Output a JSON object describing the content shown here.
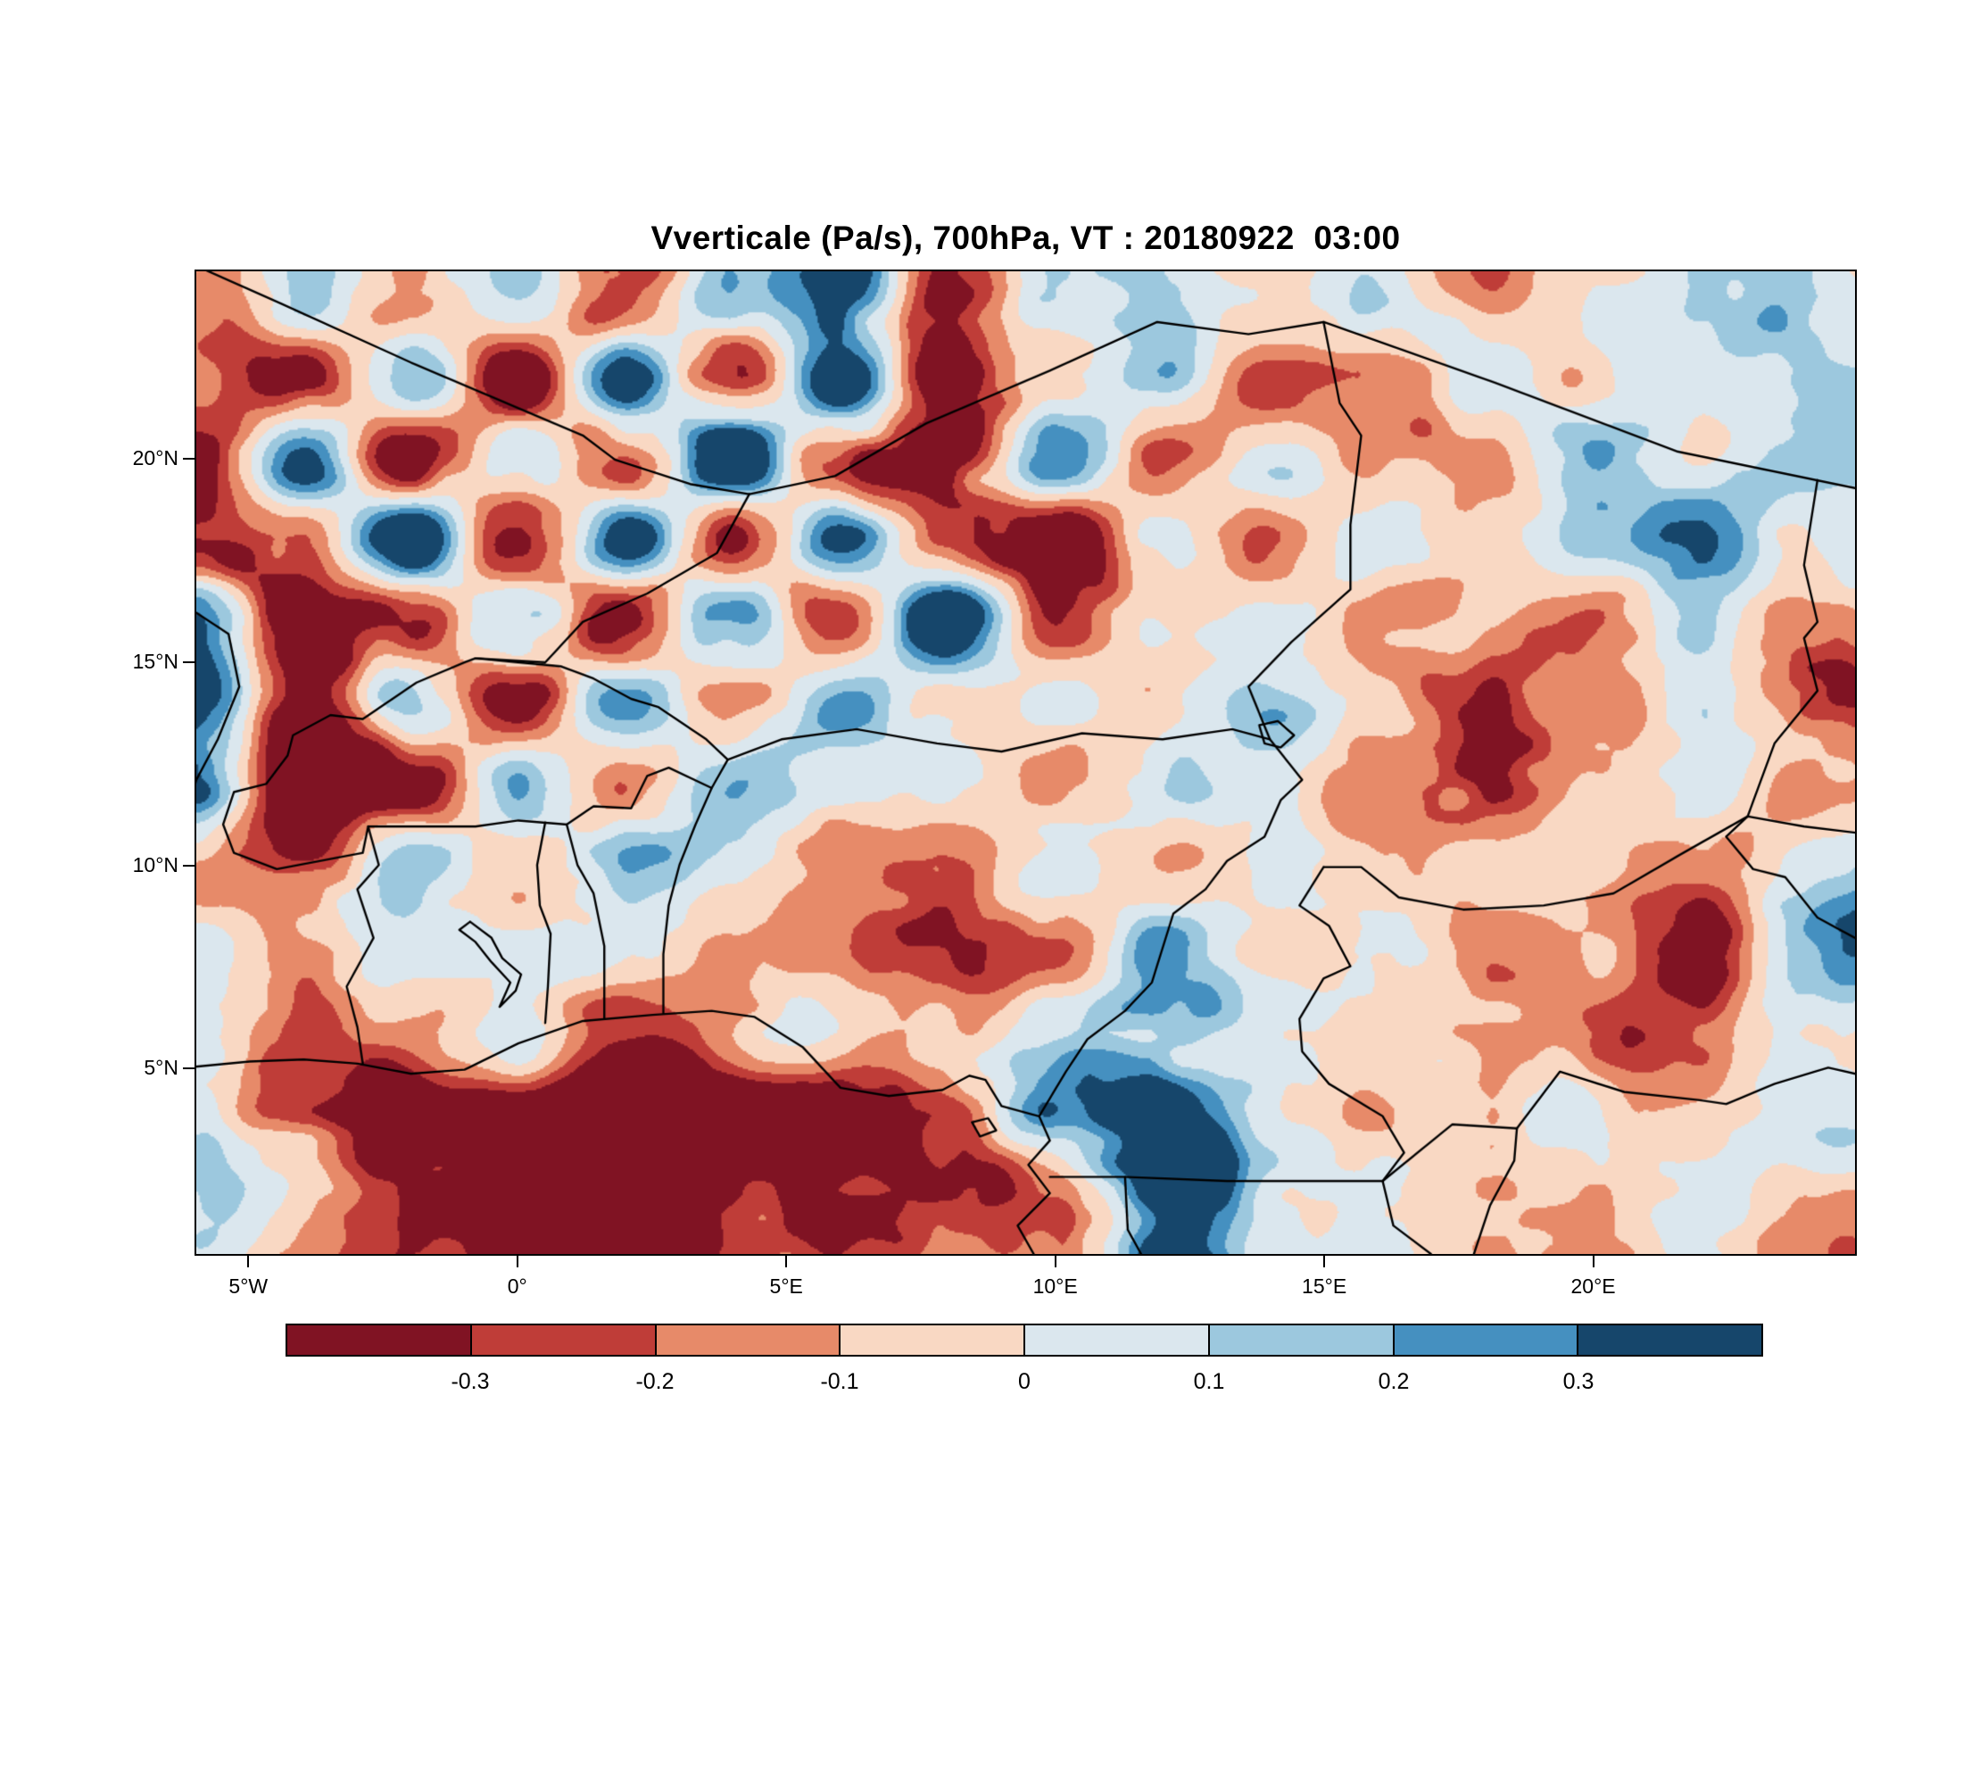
{
  "page": {
    "background": "#ffffff"
  },
  "chart_data": {
    "type": "heatmap",
    "title": "Vverticale (Pa/s), 700hPa, VT : 20180922  03:00",
    "x_ticks": [
      {
        "value": -5,
        "label": "5°W"
      },
      {
        "value": 0,
        "label": "0°"
      },
      {
        "value": 5,
        "label": "5°E"
      },
      {
        "value": 10,
        "label": "10°E"
      },
      {
        "value": 15,
        "label": "15°E"
      },
      {
        "value": 20,
        "label": "20°E"
      }
    ],
    "y_ticks": [
      {
        "value": 5,
        "label": "5°N"
      },
      {
        "value": 10,
        "label": "10°N"
      },
      {
        "value": 15,
        "label": "15°N"
      },
      {
        "value": 20,
        "label": "20°N"
      }
    ],
    "lon_range": [
      -6.0,
      24.9
    ],
    "lat_range": [
      0.4,
      24.65
    ],
    "levels": [
      -0.3,
      -0.2,
      -0.1,
      0,
      0.1,
      0.2,
      0.3
    ],
    "colorbar_labels": [
      "-0.3",
      "-0.2",
      "-0.1",
      "0",
      "0.1",
      "0.2",
      "0.3"
    ],
    "colors": [
      "#801323",
      "#bf3d38",
      "#e78a69",
      "#f9d8c3",
      "#dbe7ee",
      "#9cc8de",
      "#4590c0",
      "#16466b"
    ],
    "legend_position": "bottom",
    "grid": {
      "lon0": -6,
      "dlon": 2,
      "lat0": 24,
      "dlat": 2,
      "ncols": 16,
      "nrows": 12,
      "values": [
        [
          -0.15,
          0.1,
          -0.22,
          0.15,
          -0.35,
          0.22,
          0.38,
          -0.32,
          0.15,
          0.05,
          -0.12,
          0.1,
          -0.16,
          -0.05,
          0.1,
          0.1
        ],
        [
          -0.1,
          -0.3,
          0.25,
          -0.4,
          0.3,
          -0.45,
          0.35,
          -0.4,
          -0.1,
          0.2,
          -0.2,
          -0.25,
          0.1,
          -0.1,
          0.05,
          0.1
        ],
        [
          -0.35,
          0.3,
          -0.45,
          0.2,
          -0.4,
          0.45,
          -0.35,
          -0.45,
          0.25,
          -0.15,
          0.1,
          -0.2,
          -0.1,
          0.15,
          -0.05,
          0.05
        ],
        [
          -0.45,
          -0.2,
          0.4,
          -0.45,
          0.35,
          -0.45,
          0.3,
          -0.35,
          -0.45,
          0.1,
          -0.15,
          0.05,
          -0.1,
          0.1,
          0.25,
          -0.1
        ],
        [
          0.45,
          -0.45,
          -0.3,
          0.35,
          -0.45,
          0.3,
          -0.4,
          0.4,
          -0.2,
          0.05,
          0.1,
          -0.15,
          -0.05,
          -0.25,
          0.1,
          -0.15
        ],
        [
          0.4,
          -0.4,
          0.2,
          -0.35,
          0.3,
          -0.2,
          0.15,
          -0.1,
          0.05,
          -0.05,
          0.1,
          -0.1,
          -0.2,
          -0.1,
          0.05,
          -0.3
        ],
        [
          0.3,
          -0.45,
          -0.35,
          0.2,
          -0.15,
          0.15,
          -0.05,
          0.05,
          -0.1,
          0.1,
          -0.05,
          -0.25,
          -0.3,
          -0.05,
          0.05,
          -0.2
        ],
        [
          -0.15,
          -0.25,
          0.1,
          -0.1,
          0.2,
          0.1,
          -0.1,
          -0.15,
          0.15,
          -0.1,
          0.05,
          -0.1,
          0.05,
          -0.1,
          -0.15,
          0.1
        ],
        [
          0.05,
          -0.1,
          0.05,
          -0.05,
          0.1,
          -0.05,
          -0.1,
          -0.2,
          -0.25,
          0.15,
          -0.05,
          0.1,
          -0.1,
          -0.05,
          -0.4,
          0.3
        ],
        [
          0.1,
          -0.15,
          -0.1,
          0.05,
          -0.15,
          -0.1,
          -0.05,
          -0.15,
          0.1,
          0.2,
          0.05,
          -0.05,
          -0.15,
          -0.2,
          -0.1,
          0.1
        ],
        [
          0.05,
          -0.35,
          -0.45,
          -0.3,
          -0.45,
          -0.4,
          -0.45,
          -0.2,
          0.25,
          0.45,
          0.1,
          -0.05,
          -0.1,
          0.05,
          -0.05,
          0.15
        ],
        [
          0.1,
          -0.1,
          -0.2,
          -0.3,
          -0.45,
          -0.25,
          -0.45,
          -0.3,
          -0.1,
          0.45,
          0.05,
          0.1,
          -0.05,
          -0.1,
          0.05,
          -0.1
        ]
      ]
    },
    "noise": {
      "seed": 7,
      "octaves": [
        [
          2.6,
          0.08
        ],
        [
          1.3,
          0.05
        ],
        [
          0.65,
          0.03
        ]
      ]
    },
    "borders": [
      [
        [
          -6.2,
          5.0
        ],
        [
          -5,
          5.15
        ],
        [
          -4,
          5.2
        ],
        [
          -3,
          5.1
        ],
        [
          -2,
          4.85
        ],
        [
          -1,
          4.95
        ],
        [
          0,
          5.6
        ],
        [
          1.2,
          6.15
        ],
        [
          2.5,
          6.3
        ],
        [
          3.6,
          6.4
        ],
        [
          4.4,
          6.25
        ],
        [
          5.3,
          5.5
        ],
        [
          6,
          4.5
        ],
        [
          6.9,
          4.3
        ],
        [
          7.9,
          4.45
        ],
        [
          8.4,
          4.8
        ],
        [
          8.7,
          4.7
        ],
        [
          9,
          4.05
        ],
        [
          9.7,
          3.8
        ],
        [
          9.9,
          3.2
        ],
        [
          9.5,
          2.6
        ],
        [
          9.9,
          1.9
        ],
        [
          9.3,
          1.1
        ],
        [
          9.6,
          0.4
        ]
      ],
      [
        [
          -6.2,
          24.9
        ],
        [
          -4.5,
          23.9
        ],
        [
          -2,
          22.4
        ],
        [
          1.2,
          20.6
        ],
        [
          1.8,
          20.0
        ],
        [
          3.2,
          19.4
        ],
        [
          4.3,
          19.15
        ]
      ],
      [
        [
          4.3,
          19.15
        ],
        [
          5.9,
          19.6
        ],
        [
          7.6,
          20.9
        ],
        [
          9.9,
          22.2
        ],
        [
          11.9,
          23.4
        ],
        [
          13.6,
          23.1
        ],
        [
          15.0,
          23.4
        ],
        [
          18.2,
          21.9
        ],
        [
          21.6,
          20.2
        ],
        [
          24.9,
          19.3
        ]
      ],
      [
        [
          4.3,
          19.15
        ],
        [
          3.7,
          17.7
        ],
        [
          2.4,
          16.7
        ],
        [
          1.2,
          16.0
        ],
        [
          0.5,
          15.0
        ],
        [
          -0.8,
          15.1
        ]
      ],
      [
        [
          -6.2,
          16.4
        ],
        [
          -5.4,
          15.7
        ],
        [
          -5.2,
          14.4
        ],
        [
          -5.6,
          13.1
        ],
        [
          -6.0,
          12.1
        ],
        [
          -6.2,
          11.1
        ]
      ],
      [
        [
          -0.8,
          15.1
        ],
        [
          0.0,
          15.0
        ],
        [
          0.8,
          14.9
        ],
        [
          1.4,
          14.6
        ],
        [
          2.1,
          14.1
        ],
        [
          2.6,
          13.9
        ],
        [
          3.5,
          13.1
        ],
        [
          3.9,
          12.6
        ],
        [
          3.6,
          11.9
        ],
        [
          2.8,
          12.4
        ],
        [
          2.4,
          12.2
        ],
        [
          2.1,
          11.4
        ],
        [
          1.4,
          11.45
        ],
        [
          0.9,
          11.0
        ],
        [
          0.0,
          11.1
        ],
        [
          -0.8,
          10.95
        ],
        [
          -2.8,
          10.95
        ],
        [
          -2.9,
          10.3
        ],
        [
          -4.5,
          9.9
        ],
        [
          -5.3,
          10.3
        ],
        [
          -5.5,
          11.0
        ],
        [
          -5.3,
          11.8
        ],
        [
          -4.7,
          12.0
        ],
        [
          -4.3,
          12.7
        ],
        [
          -4.2,
          13.2
        ],
        [
          -3.5,
          13.7
        ],
        [
          -2.9,
          13.6
        ],
        [
          -1.9,
          14.5
        ],
        [
          -1.0,
          15.0
        ],
        [
          -0.8,
          15.1
        ]
      ],
      [
        [
          3.9,
          12.6
        ],
        [
          4.9,
          13.1
        ],
        [
          6.3,
          13.35
        ],
        [
          7.8,
          13.0
        ],
        [
          9.0,
          12.8
        ],
        [
          10.5,
          13.25
        ],
        [
          12.0,
          13.1
        ],
        [
          13.3,
          13.35
        ],
        [
          14.0,
          13.1
        ]
      ],
      [
        [
          13.8,
          13.45
        ],
        [
          14.15,
          13.55
        ],
        [
          14.45,
          13.2
        ],
        [
          14.2,
          12.9
        ],
        [
          13.9,
          13.0
        ],
        [
          13.8,
          13.45
        ]
      ],
      [
        [
          15.0,
          23.4
        ],
        [
          15.3,
          21.4
        ],
        [
          15.7,
          20.6
        ],
        [
          15.5,
          18.4
        ],
        [
          15.5,
          16.8
        ],
        [
          14.4,
          15.5
        ],
        [
          13.6,
          14.4
        ],
        [
          14.0,
          13.1
        ]
      ],
      [
        [
          14.0,
          13.1
        ],
        [
          14.6,
          12.1
        ],
        [
          14.2,
          11.6
        ],
        [
          13.9,
          10.7
        ],
        [
          13.2,
          10.1
        ],
        [
          12.8,
          9.4
        ],
        [
          12.2,
          8.8
        ],
        [
          11.8,
          7.1
        ],
        [
          11.3,
          6.4
        ],
        [
          10.6,
          5.7
        ],
        [
          10.2,
          4.9
        ],
        [
          9.7,
          3.8
        ]
      ],
      [
        [
          0.5,
          11.05
        ],
        [
          0.35,
          10.0
        ],
        [
          0.4,
          9.0
        ],
        [
          0.6,
          8.3
        ],
        [
          0.55,
          7.0
        ],
        [
          0.5,
          6.1
        ]
      ],
      [
        [
          0.9,
          11.0
        ],
        [
          1.1,
          10.0
        ],
        [
          1.4,
          9.3
        ],
        [
          1.6,
          8.0
        ],
        [
          1.6,
          6.9
        ],
        [
          1.6,
          6.2
        ]
      ],
      [
        [
          3.6,
          11.9
        ],
        [
          3.3,
          11.0
        ],
        [
          3.0,
          10.0
        ],
        [
          2.8,
          9.0
        ],
        [
          2.7,
          7.8
        ],
        [
          2.7,
          6.35
        ]
      ],
      [
        [
          -2.8,
          10.95
        ],
        [
          -2.6,
          10.0
        ],
        [
          -3.0,
          9.4
        ],
        [
          -2.7,
          8.2
        ],
        [
          -3.2,
          7.0
        ],
        [
          -3.0,
          6.0
        ],
        [
          -2.9,
          5.1
        ]
      ],
      [
        [
          15.0,
          9.95
        ],
        [
          15.7,
          9.95
        ],
        [
          16.4,
          9.2
        ],
        [
          17.6,
          8.9
        ],
        [
          19.1,
          9.0
        ],
        [
          20.4,
          9.3
        ],
        [
          21.7,
          10.3
        ],
        [
          22.9,
          11.2
        ],
        [
          23.95,
          10.95
        ],
        [
          24.9,
          10.8
        ]
      ],
      [
        [
          24.2,
          19.5
        ],
        [
          23.95,
          17.4
        ],
        [
          24.2,
          16.0
        ],
        [
          23.95,
          15.6
        ],
        [
          24.2,
          14.3
        ],
        [
          23.4,
          13.0
        ],
        [
          22.9,
          11.2
        ]
      ],
      [
        [
          15.0,
          9.95
        ],
        [
          14.55,
          9.0
        ],
        [
          15.1,
          8.5
        ],
        [
          15.5,
          7.5
        ],
        [
          15.0,
          7.2
        ],
        [
          14.55,
          6.2
        ],
        [
          14.6,
          5.4
        ],
        [
          15.1,
          4.6
        ],
        [
          16.1,
          3.8
        ],
        [
          16.5,
          2.9
        ],
        [
          16.1,
          2.2
        ]
      ],
      [
        [
          9.9,
          2.3
        ],
        [
          11.3,
          2.3
        ],
        [
          13.2,
          2.2
        ],
        [
          14.3,
          2.2
        ],
        [
          16.1,
          2.2
        ]
      ],
      [
        [
          11.3,
          2.3
        ],
        [
          11.35,
          1.0
        ],
        [
          11.6,
          0.4
        ]
      ],
      [
        [
          16.1,
          2.2
        ],
        [
          17.4,
          3.6
        ],
        [
          18.6,
          3.5
        ],
        [
          19.4,
          4.9
        ],
        [
          20.6,
          4.4
        ],
        [
          22.0,
          4.2
        ],
        [
          22.5,
          4.1
        ],
        [
          23.4,
          4.6
        ],
        [
          24.4,
          5.0
        ],
        [
          24.9,
          4.85
        ]
      ],
      [
        [
          22.9,
          11.2
        ],
        [
          22.5,
          10.7
        ],
        [
          23.0,
          9.9
        ],
        [
          23.6,
          9.7
        ],
        [
          24.2,
          8.7
        ],
        [
          24.9,
          8.2
        ]
      ],
      [
        [
          -0.9,
          8.6
        ],
        [
          -0.5,
          8.2
        ],
        [
          -0.3,
          7.7
        ],
        [
          0.05,
          7.3
        ],
        [
          -0.05,
          6.9
        ],
        [
          -0.35,
          6.5
        ],
        [
          -0.15,
          7.1
        ],
        [
          -0.5,
          7.6
        ],
        [
          -0.8,
          8.1
        ],
        [
          -1.1,
          8.4
        ],
        [
          -0.9,
          8.6
        ]
      ],
      [
        [
          8.45,
          3.65
        ],
        [
          8.75,
          3.75
        ],
        [
          8.9,
          3.45
        ],
        [
          8.6,
          3.3
        ],
        [
          8.45,
          3.65
        ]
      ],
      [
        [
          16.1,
          2.2
        ],
        [
          16.3,
          1.1
        ],
        [
          17.0,
          0.4
        ]
      ],
      [
        [
          18.6,
          3.5
        ],
        [
          18.55,
          2.7
        ],
        [
          18.1,
          1.6
        ],
        [
          17.8,
          0.4
        ]
      ]
    ]
  }
}
